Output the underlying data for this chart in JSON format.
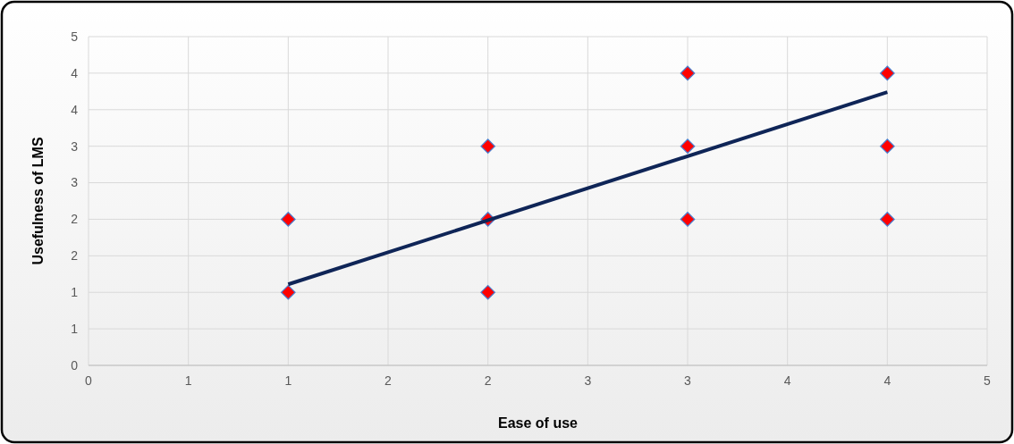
{
  "chart_data": {
    "type": "scatter",
    "xlabel": "Ease of use",
    "ylabel": "Usefulness of LMS",
    "xlim": [
      0,
      4.5
    ],
    "ylim": [
      0,
      4.5
    ],
    "xticks": [
      0,
      {
        "value": 0.5,
        "label": "1"
      },
      1,
      {
        "value": 1.5,
        "label": "2"
      },
      2,
      {
        "value": 2.5,
        "label": "3"
      },
      3,
      {
        "value": 3.5,
        "label": "4"
      },
      4,
      {
        "value": 4.5,
        "label": "5"
      }
    ],
    "yticks": [
      0,
      {
        "value": 0.5,
        "label": "1"
      },
      1,
      {
        "value": 1.5,
        "label": "2"
      },
      2,
      {
        "value": 2.5,
        "label": "3"
      },
      3,
      {
        "value": 3.5,
        "label": "4"
      },
      4,
      {
        "value": 4.5,
        "label": "5"
      }
    ],
    "grid": true,
    "series": [
      {
        "marker": "diamond",
        "color": "#ff0000",
        "x": [
          1,
          1,
          2,
          2,
          2,
          3,
          3,
          3,
          4,
          4,
          4
        ],
        "values": [
          1,
          2,
          1,
          2,
          3,
          2,
          3,
          4,
          2,
          3,
          4
        ]
      },
      {
        "type": "line",
        "color": "#0f2557",
        "x": [
          1,
          4
        ],
        "values": [
          1.11,
          3.74
        ]
      }
    ]
  }
}
